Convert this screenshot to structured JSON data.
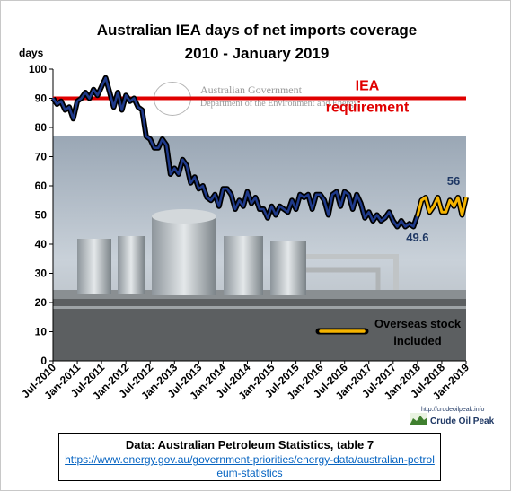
{
  "chart_data": {
    "type": "line",
    "title": "Australian  IEA days of net imports coverage",
    "subtitle": "2010 - January  2019",
    "ylabel": "days",
    "ylim": [
      0,
      100
    ],
    "yticks": [
      "0",
      "10",
      "20",
      "30",
      "40",
      "50",
      "60",
      "70",
      "80",
      "90",
      "100"
    ],
    "xticks": [
      "Jul-2010",
      "Jan-2011",
      "Jul-2011",
      "Jan-2012",
      "Jul-2012",
      "Jan-2013",
      "Jul-2013",
      "Jan-2014",
      "Jul-2014",
      "Jan-2015",
      "Jul-2015",
      "Jan-2016",
      "Jul-2016",
      "Jan-2017",
      "Jul-2017",
      "Jan-2018",
      "Jul-2018",
      "Jan-2019"
    ],
    "grid": false,
    "reference_line": {
      "label": "IEA requirement",
      "value": 90,
      "color": "#e00000"
    },
    "series": [
      {
        "color": "#000000",
        "highlight": "#1f3a8a",
        "x": [
          "2010-07",
          "2010-08",
          "2010-09",
          "2010-10",
          "2010-11",
          "2010-12",
          "2011-01",
          "2011-02",
          "2011-03",
          "2011-04",
          "2011-05",
          "2011-06",
          "2011-07",
          "2011-08",
          "2011-09",
          "2011-10",
          "2011-11",
          "2011-12",
          "2012-01",
          "2012-02",
          "2012-03",
          "2012-04",
          "2012-05",
          "2012-06",
          "2012-07",
          "2012-08",
          "2012-09",
          "2012-10",
          "2012-11",
          "2012-12",
          "2013-01",
          "2013-02",
          "2013-03",
          "2013-04",
          "2013-05",
          "2013-06",
          "2013-07",
          "2013-08",
          "2013-09",
          "2013-10",
          "2013-11",
          "2013-12",
          "2014-01",
          "2014-02",
          "2014-03",
          "2014-04",
          "2014-05",
          "2014-06",
          "2014-07",
          "2014-08",
          "2014-09",
          "2014-10",
          "2014-11",
          "2014-12",
          "2015-01",
          "2015-02",
          "2015-03",
          "2015-04",
          "2015-05",
          "2015-06",
          "2015-07",
          "2015-08",
          "2015-09",
          "2015-10",
          "2015-11",
          "2015-12",
          "2016-01",
          "2016-02",
          "2016-03",
          "2016-04",
          "2016-05",
          "2016-06",
          "2016-07",
          "2016-08",
          "2016-09",
          "2016-10",
          "2016-11",
          "2016-12",
          "2017-01",
          "2017-02",
          "2017-03",
          "2017-04",
          "2017-05",
          "2017-06",
          "2017-07",
          "2017-08",
          "2017-09",
          "2017-10",
          "2017-11",
          "2017-12",
          "2018-01"
        ],
        "values": [
          90,
          88,
          89,
          86,
          87,
          83,
          89,
          90,
          92,
          90,
          93,
          91,
          94,
          97,
          92,
          87,
          92,
          86,
          91,
          89,
          90,
          87,
          86,
          77,
          76,
          73,
          73,
          76,
          74,
          64,
          66,
          64,
          69,
          67,
          61,
          63,
          59,
          60,
          56,
          55,
          57,
          53,
          59,
          59,
          57,
          52,
          55,
          53,
          58,
          54,
          56,
          52,
          52,
          49,
          53,
          50,
          53,
          52,
          51,
          55,
          52,
          57,
          56,
          57,
          52,
          57,
          57,
          55,
          50,
          57,
          58,
          53,
          58,
          57,
          52,
          57,
          54,
          49,
          51,
          48,
          50,
          48,
          49,
          51,
          48,
          46,
          48,
          46,
          47,
          46,
          50
        ]
      },
      {
        "name": "Overseas stock included",
        "color": "#f5b400",
        "x": [
          "2018-01",
          "2018-02",
          "2018-03",
          "2018-04",
          "2018-05",
          "2018-06",
          "2018-07",
          "2018-08",
          "2018-09",
          "2018-10",
          "2018-11",
          "2018-12",
          "2019-01"
        ],
        "values": [
          49.6,
          55,
          56,
          51,
          53,
          56,
          51,
          51,
          55,
          53,
          56,
          50,
          56
        ]
      }
    ],
    "annotations": [
      {
        "text": "IEA",
        "ref": "reference_line"
      },
      {
        "text": "requirement",
        "ref": "reference_line"
      },
      {
        "text": "56",
        "at": "2019-01"
      },
      {
        "text": "49.6",
        "at": "2018-01"
      }
    ],
    "legend": {
      "position": "bottom-right",
      "label_line1": "Overseas stock",
      "label_line2": "included"
    }
  },
  "background": {
    "banner_line1": "Australian Government",
    "banner_line2": "Department of the Environment and Energy"
  },
  "logo": {
    "url": "http://crudeoilpeak.info",
    "name": "Crude Oil Peak"
  },
  "source": {
    "title": "Data: Australian Petroleum Statistics, table 7",
    "url": "https://www.energy.gov.au/government-priorities/energy-data/australian-petroleum-statistics"
  }
}
